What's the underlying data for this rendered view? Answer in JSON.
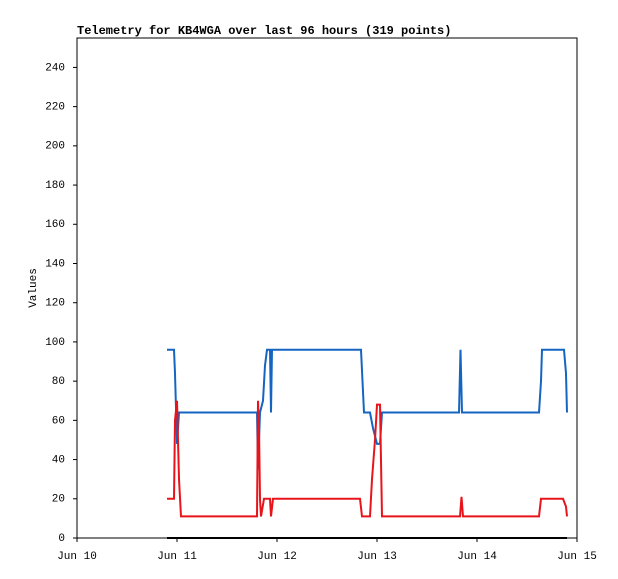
{
  "chart_data": {
    "type": "line",
    "title": "Telemetry for KB4WGA over last 96 hours (319 points)",
    "y_label": "Values",
    "xlim": [
      10,
      15
    ],
    "xticks": [
      {
        "value": 10,
        "label": "Jun 10"
      },
      {
        "value": 11,
        "label": "Jun 11"
      },
      {
        "value": 12,
        "label": "Jun 12"
      },
      {
        "value": 13,
        "label": "Jun 13"
      },
      {
        "value": 14,
        "label": "Jun 14"
      },
      {
        "value": 15,
        "label": "Jun 15"
      }
    ],
    "ylim": [
      0,
      255
    ],
    "yticks": [
      0,
      20,
      40,
      60,
      80,
      100,
      120,
      140,
      160,
      180,
      200,
      220,
      240
    ],
    "series": [
      {
        "color": "#1565c0",
        "x": [
          10.9,
          10.97,
          10.98,
          11.0,
          11.02,
          11.04,
          11.8,
          11.81,
          11.83,
          11.86,
          11.88,
          11.9,
          11.93,
          11.94,
          11.95,
          12.84,
          12.87,
          12.93,
          12.96,
          13.0,
          13.03,
          13.05,
          13.82,
          13.835,
          13.85,
          14.62,
          14.64,
          14.65,
          14.87,
          14.89,
          14.9
        ],
        "values": [
          96,
          96,
          84,
          48,
          64,
          64,
          64,
          35,
          64,
          70,
          88,
          96,
          96,
          64,
          96,
          96,
          64,
          64,
          56,
          48,
          48,
          64,
          64,
          96,
          64,
          64,
          80,
          96,
          96,
          84,
          64
        ]
      },
      {
        "color": "#e8141b",
        "x": [
          10.9,
          10.97,
          10.98,
          11.0,
          11.02,
          11.04,
          11.8,
          11.81,
          11.82,
          11.83,
          11.84,
          11.87,
          11.93,
          11.94,
          11.96,
          12.83,
          12.85,
          12.93,
          12.95,
          12.98,
          13.0,
          13.03,
          13.05,
          13.83,
          13.845,
          13.86,
          14.62,
          14.64,
          14.86,
          14.89,
          14.9
        ],
        "values": [
          20,
          20,
          60,
          70,
          30,
          11,
          11,
          70,
          56,
          20,
          11,
          20,
          20,
          11,
          20,
          20,
          11,
          11,
          30,
          50,
          68,
          68,
          11,
          11,
          21,
          11,
          11,
          20,
          20,
          16,
          11
        ]
      },
      {
        "color": "#000000",
        "x": [
          10.9,
          14.9
        ],
        "values": [
          0,
          0
        ]
      }
    ]
  }
}
